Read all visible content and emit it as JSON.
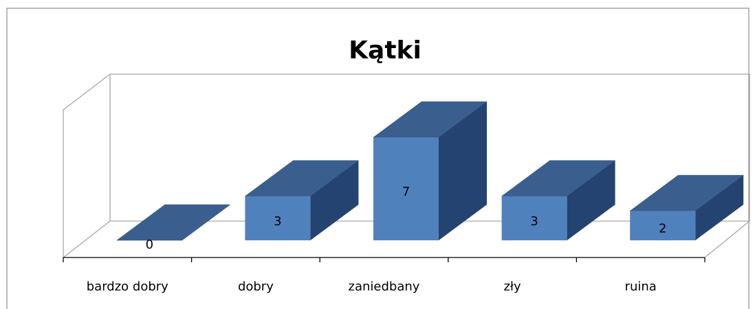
{
  "chart_data": {
    "type": "bar3d",
    "title": "Kątki",
    "categories": [
      "bardzo dobry",
      "dobry",
      "zaniedbany",
      "zły",
      "ruina"
    ],
    "values": [
      0,
      3,
      7,
      3,
      2
    ],
    "color": "#4f81bd"
  }
}
